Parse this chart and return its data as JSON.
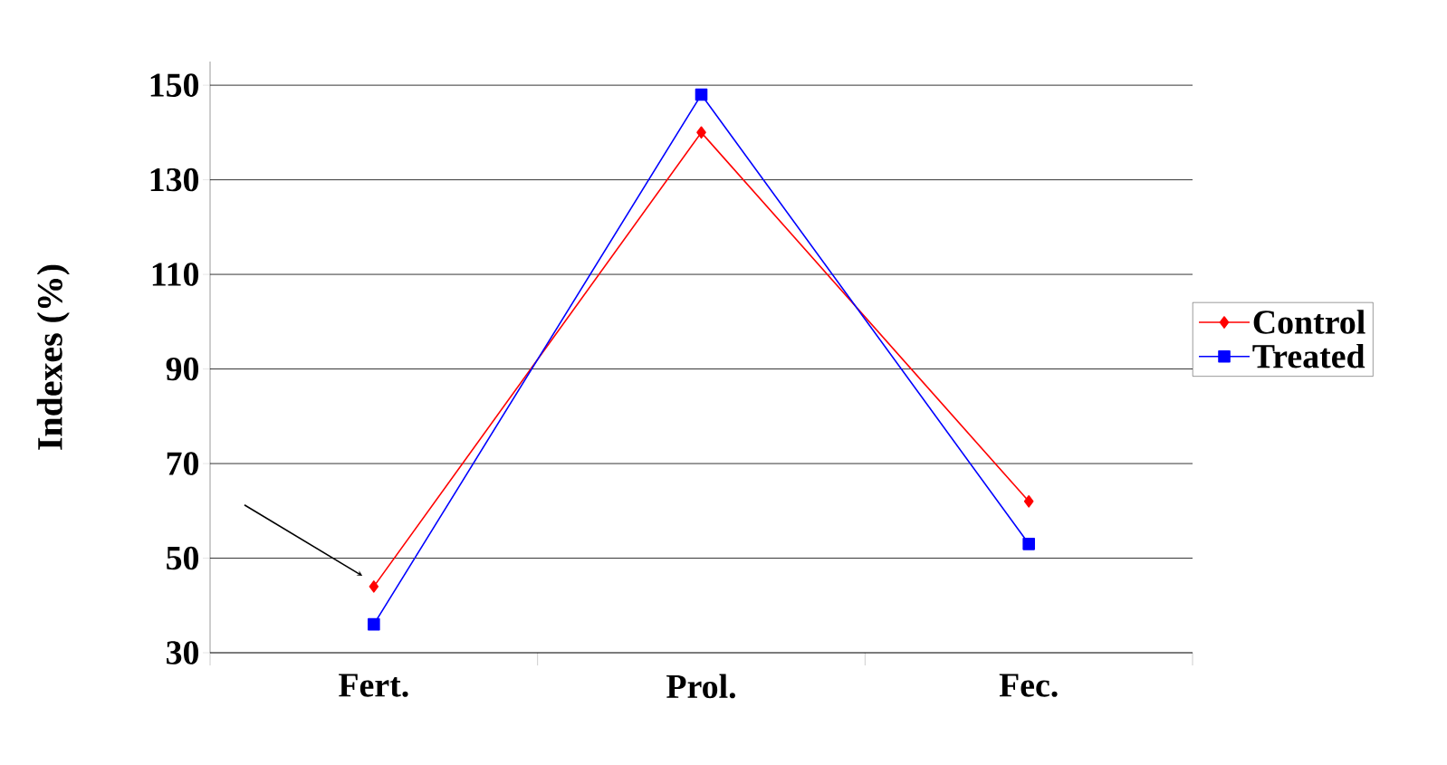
{
  "chart_data": {
    "type": "line",
    "ylabel": "Indexes (%)",
    "categories": [
      "Fert.",
      "Prol.",
      "Fec."
    ],
    "series": [
      {
        "name": "Control",
        "color": "#ff0000",
        "marker": "diamond",
        "values": [
          44,
          140,
          62
        ]
      },
      {
        "name": "Treated",
        "color": "#0000ff",
        "marker": "square",
        "values": [
          36,
          148,
          53
        ]
      }
    ],
    "ylim": [
      30,
      155
    ],
    "yticks": [
      30,
      50,
      70,
      90,
      110,
      130,
      150
    ],
    "grid": "y",
    "legend": "right"
  }
}
